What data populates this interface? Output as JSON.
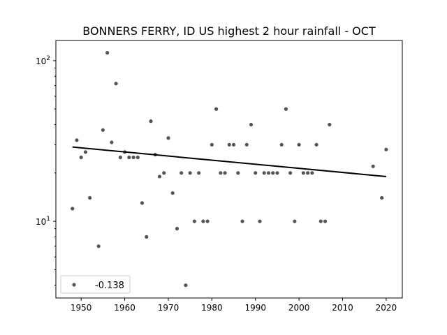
{
  "chart_data": {
    "type": "scatter",
    "title": "BONNERS FERRY, ID US highest 2 hour rainfall - OCT",
    "xlabel": "",
    "ylabel": "",
    "yscale": "log",
    "xlim": [
      1944.2,
      2023.7
    ],
    "ylim": [
      3.33,
      133.6
    ],
    "xticks": [
      1950,
      1960,
      1970,
      1980,
      1990,
      2000,
      2010,
      2020
    ],
    "yticks": [
      {
        "value": 10,
        "base": "10",
        "exp": "1"
      },
      {
        "value": 100,
        "base": "10",
        "exp": "2"
      }
    ],
    "grid": false,
    "legend": {
      "placement": "lower-left",
      "entries": [
        "-0.138"
      ]
    },
    "series": [
      {
        "name": "-0.138",
        "color": "#555555",
        "x": [
          1948,
          1949,
          1950,
          1951,
          1952,
          1954,
          1955,
          1956,
          1957,
          1958,
          1959,
          1960,
          1961,
          1962,
          1963,
          1964,
          1965,
          1966,
          1967,
          1968,
          1969,
          1970,
          1971,
          1972,
          1973,
          1974,
          1975,
          1976,
          1977,
          1978,
          1979,
          1980,
          1981,
          1982,
          1983,
          1984,
          1985,
          1986,
          1987,
          1988,
          1989,
          1990,
          1991,
          1992,
          1993,
          1994,
          1995,
          1996,
          1997,
          1998,
          1999,
          2000,
          2001,
          2002,
          2003,
          2004,
          2005,
          2006,
          2007,
          2017,
          2019,
          2020
        ],
        "y": [
          12,
          32,
          25,
          27,
          14,
          7,
          37,
          112,
          31,
          72,
          25,
          27,
          25,
          25,
          25,
          13,
          8,
          42,
          26,
          19,
          20,
          33,
          15,
          9,
          20,
          4,
          20,
          10,
          20,
          10,
          10,
          30,
          50,
          20,
          20,
          30,
          30,
          20,
          10,
          30,
          40,
          20,
          10,
          20,
          20,
          20,
          20,
          30,
          50,
          20,
          10,
          30,
          20,
          20,
          20,
          30,
          10,
          10,
          40,
          22,
          14,
          28
        ]
      }
    ],
    "trend": {
      "x": [
        1948,
        2020
      ],
      "y": [
        29,
        19
      ],
      "color": "#000000"
    }
  }
}
